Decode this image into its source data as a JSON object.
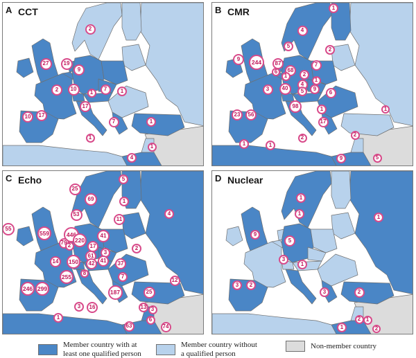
{
  "colors": {
    "sea": "#ffffff",
    "member_with": "#4a86c6",
    "member_without": "#b8d2ec",
    "non_member": "#dcdcdc",
    "border": "#6f6f6f",
    "bubble_border": "#d84a8a",
    "bubble_text": "#c2185b"
  },
  "panels": [
    {
      "letter": "A",
      "title": "CCT",
      "shading": {
        "uk": "with",
        "ireland": "with",
        "france": "with",
        "germany": "with",
        "netherlands": "with",
        "belgium": "with",
        "switzerland": "with",
        "austria": "with",
        "poland": "with",
        "czech": "with",
        "iberia": "with",
        "italy": "with",
        "scandinavia": "without",
        "finland": "without",
        "baltics": "without",
        "russia": "without",
        "balkans": "without",
        "turkey": "with",
        "greece": "with",
        "north_africa": "without",
        "egypt": "with",
        "levant": "without",
        "mideast": "non"
      },
      "bubbles": [
        {
          "value": "2"
        },
        {
          "value": "27"
        },
        {
          "value": "19"
        },
        {
          "value": "9"
        },
        {
          "value": "2"
        },
        {
          "value": "10"
        },
        {
          "value": "1"
        },
        {
          "value": "7"
        },
        {
          "value": "1"
        },
        {
          "value": "17"
        },
        {
          "value": "10"
        },
        {
          "value": "17"
        },
        {
          "value": "7"
        },
        {
          "value": "1"
        },
        {
          "value": "1"
        },
        {
          "value": "1"
        },
        {
          "value": "4"
        }
      ]
    },
    {
      "letter": "B",
      "title": "CMR",
      "shading": {
        "uk": "with",
        "ireland": "with",
        "france": "with",
        "germany": "with",
        "netherlands": "with",
        "belgium": "with",
        "switzerland": "with",
        "austria": "with",
        "poland": "with",
        "czech": "with",
        "iberia": "with",
        "italy": "with",
        "scandinavia": "with",
        "finland": "with",
        "baltics": "without",
        "russia": "without",
        "balkans": "with",
        "turkey": "without",
        "greece": "with",
        "north_africa": "with",
        "egypt": "with",
        "levant": "without",
        "mideast": "non"
      },
      "bubbles": [
        {
          "value": "1"
        },
        {
          "value": "4"
        },
        {
          "value": "5"
        },
        {
          "value": "2"
        },
        {
          "value": "9"
        },
        {
          "value": "244"
        },
        {
          "value": "87"
        },
        {
          "value": "6"
        },
        {
          "value": "68"
        },
        {
          "value": "2"
        },
        {
          "value": "7"
        },
        {
          "value": "1"
        },
        {
          "value": "1"
        },
        {
          "value": "4"
        },
        {
          "value": "5"
        },
        {
          "value": "40"
        },
        {
          "value": "3"
        },
        {
          "value": "9"
        },
        {
          "value": "6"
        },
        {
          "value": "98"
        },
        {
          "value": "23"
        },
        {
          "value": "56"
        },
        {
          "value": "1"
        },
        {
          "value": "17"
        },
        {
          "value": "1"
        },
        {
          "value": "2"
        },
        {
          "value": "1"
        },
        {
          "value": "1"
        },
        {
          "value": "2"
        },
        {
          "value": "9"
        },
        {
          "value": "5"
        }
      ]
    },
    {
      "letter": "C",
      "title": "Echo",
      "shading": {
        "uk": "with",
        "ireland": "with",
        "france": "with",
        "germany": "with",
        "netherlands": "with",
        "belgium": "with",
        "switzerland": "with",
        "austria": "with",
        "poland": "with",
        "czech": "with",
        "iberia": "with",
        "italy": "with",
        "scandinavia": "with",
        "finland": "with",
        "baltics": "with",
        "russia": "with",
        "balkans": "with",
        "turkey": "with",
        "greece": "with",
        "north_africa": "with",
        "egypt": "with",
        "levant": "with",
        "mideast": "non"
      },
      "bubbles": [
        {
          "value": "5"
        },
        {
          "value": "25"
        },
        {
          "value": "69"
        },
        {
          "value": "1"
        },
        {
          "value": "4"
        },
        {
          "value": "53"
        },
        {
          "value": "11"
        },
        {
          "value": "55"
        },
        {
          "value": "559"
        },
        {
          "value": "446"
        },
        {
          "value": "79"
        },
        {
          "value": "2"
        },
        {
          "value": "220"
        },
        {
          "value": "41"
        },
        {
          "value": "17"
        },
        {
          "value": "61"
        },
        {
          "value": "3"
        },
        {
          "value": "2"
        },
        {
          "value": "14"
        },
        {
          "value": "150"
        },
        {
          "value": "42"
        },
        {
          "value": "41"
        },
        {
          "value": "37"
        },
        {
          "value": "8"
        },
        {
          "value": "255"
        },
        {
          "value": "7"
        },
        {
          "value": "12"
        },
        {
          "value": "246"
        },
        {
          "value": "299"
        },
        {
          "value": "187"
        },
        {
          "value": "25"
        },
        {
          "value": "3"
        },
        {
          "value": "16"
        },
        {
          "value": "13"
        },
        {
          "value": "3"
        },
        {
          "value": "1"
        },
        {
          "value": "6"
        },
        {
          "value": "63"
        },
        {
          "value": "74"
        }
      ]
    },
    {
      "letter": "D",
      "title": "Nuclear",
      "shading": {
        "uk": "with",
        "ireland": "without",
        "france": "without",
        "germany": "with",
        "netherlands": "without",
        "belgium": "without",
        "switzerland": "without",
        "austria": "without",
        "poland": "without",
        "czech": "without",
        "iberia": "with",
        "italy": "with",
        "scandinavia": "with",
        "finland": "without",
        "baltics": "without",
        "russia": "with",
        "balkans": "without",
        "turkey": "with",
        "greece": "with",
        "north_africa": "without",
        "egypt": "with",
        "levant": "without",
        "mideast": "non"
      },
      "bubbles": [
        {
          "value": "1"
        },
        {
          "value": "1"
        },
        {
          "value": "1"
        },
        {
          "value": "9"
        },
        {
          "value": "5"
        },
        {
          "value": "3"
        },
        {
          "value": "1"
        },
        {
          "value": "3"
        },
        {
          "value": "2"
        },
        {
          "value": "3"
        },
        {
          "value": "2"
        },
        {
          "value": "2"
        },
        {
          "value": "1"
        },
        {
          "value": "2"
        },
        {
          "value": "1"
        }
      ]
    }
  ],
  "legend": {
    "with_label": "Member country with at\nleast one qualified person",
    "without_label": "Member country without\na qualified person",
    "non_member_label": "Non-member country"
  }
}
